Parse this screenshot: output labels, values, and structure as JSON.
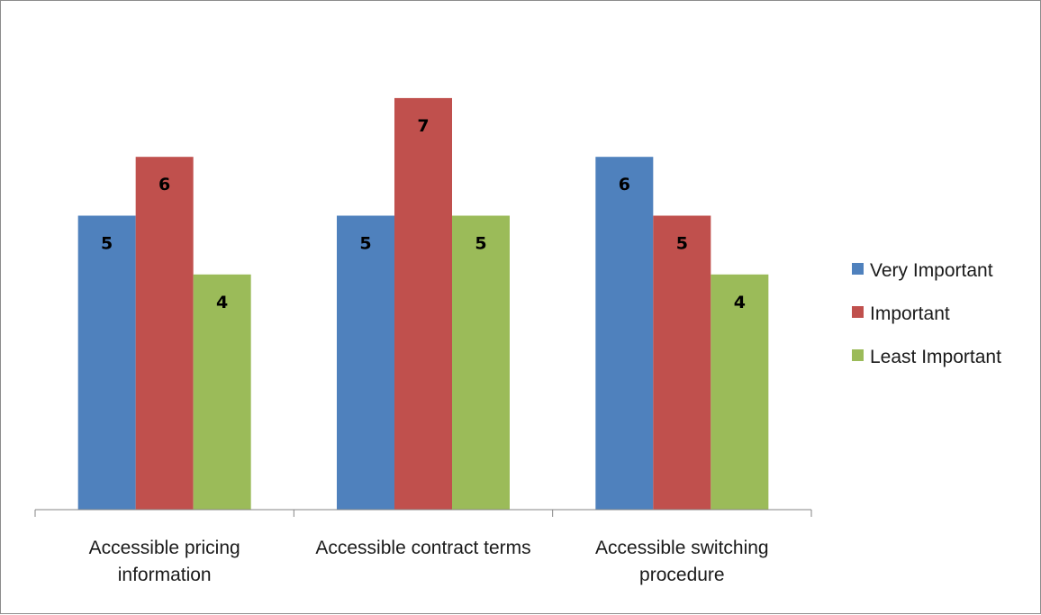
{
  "chart_data": {
    "type": "bar",
    "title": "",
    "xlabel": "",
    "ylabel": "",
    "ylim": [
      0,
      8
    ],
    "grid": false,
    "legend_position": "right",
    "data_labels": true,
    "categories": [
      [
        "Accessible pricing",
        "information"
      ],
      [
        "Accessible contract terms"
      ],
      [
        "Accessible switching",
        "procedure"
      ]
    ],
    "series": [
      {
        "name": "Very Important",
        "color": "#4F81BD",
        "values": [
          5,
          5,
          6
        ]
      },
      {
        "name": "Important",
        "color": "#C0504D",
        "values": [
          6,
          7,
          5
        ]
      },
      {
        "name": "Least Important",
        "color": "#9BBB59",
        "values": [
          4,
          5,
          4
        ]
      }
    ]
  }
}
